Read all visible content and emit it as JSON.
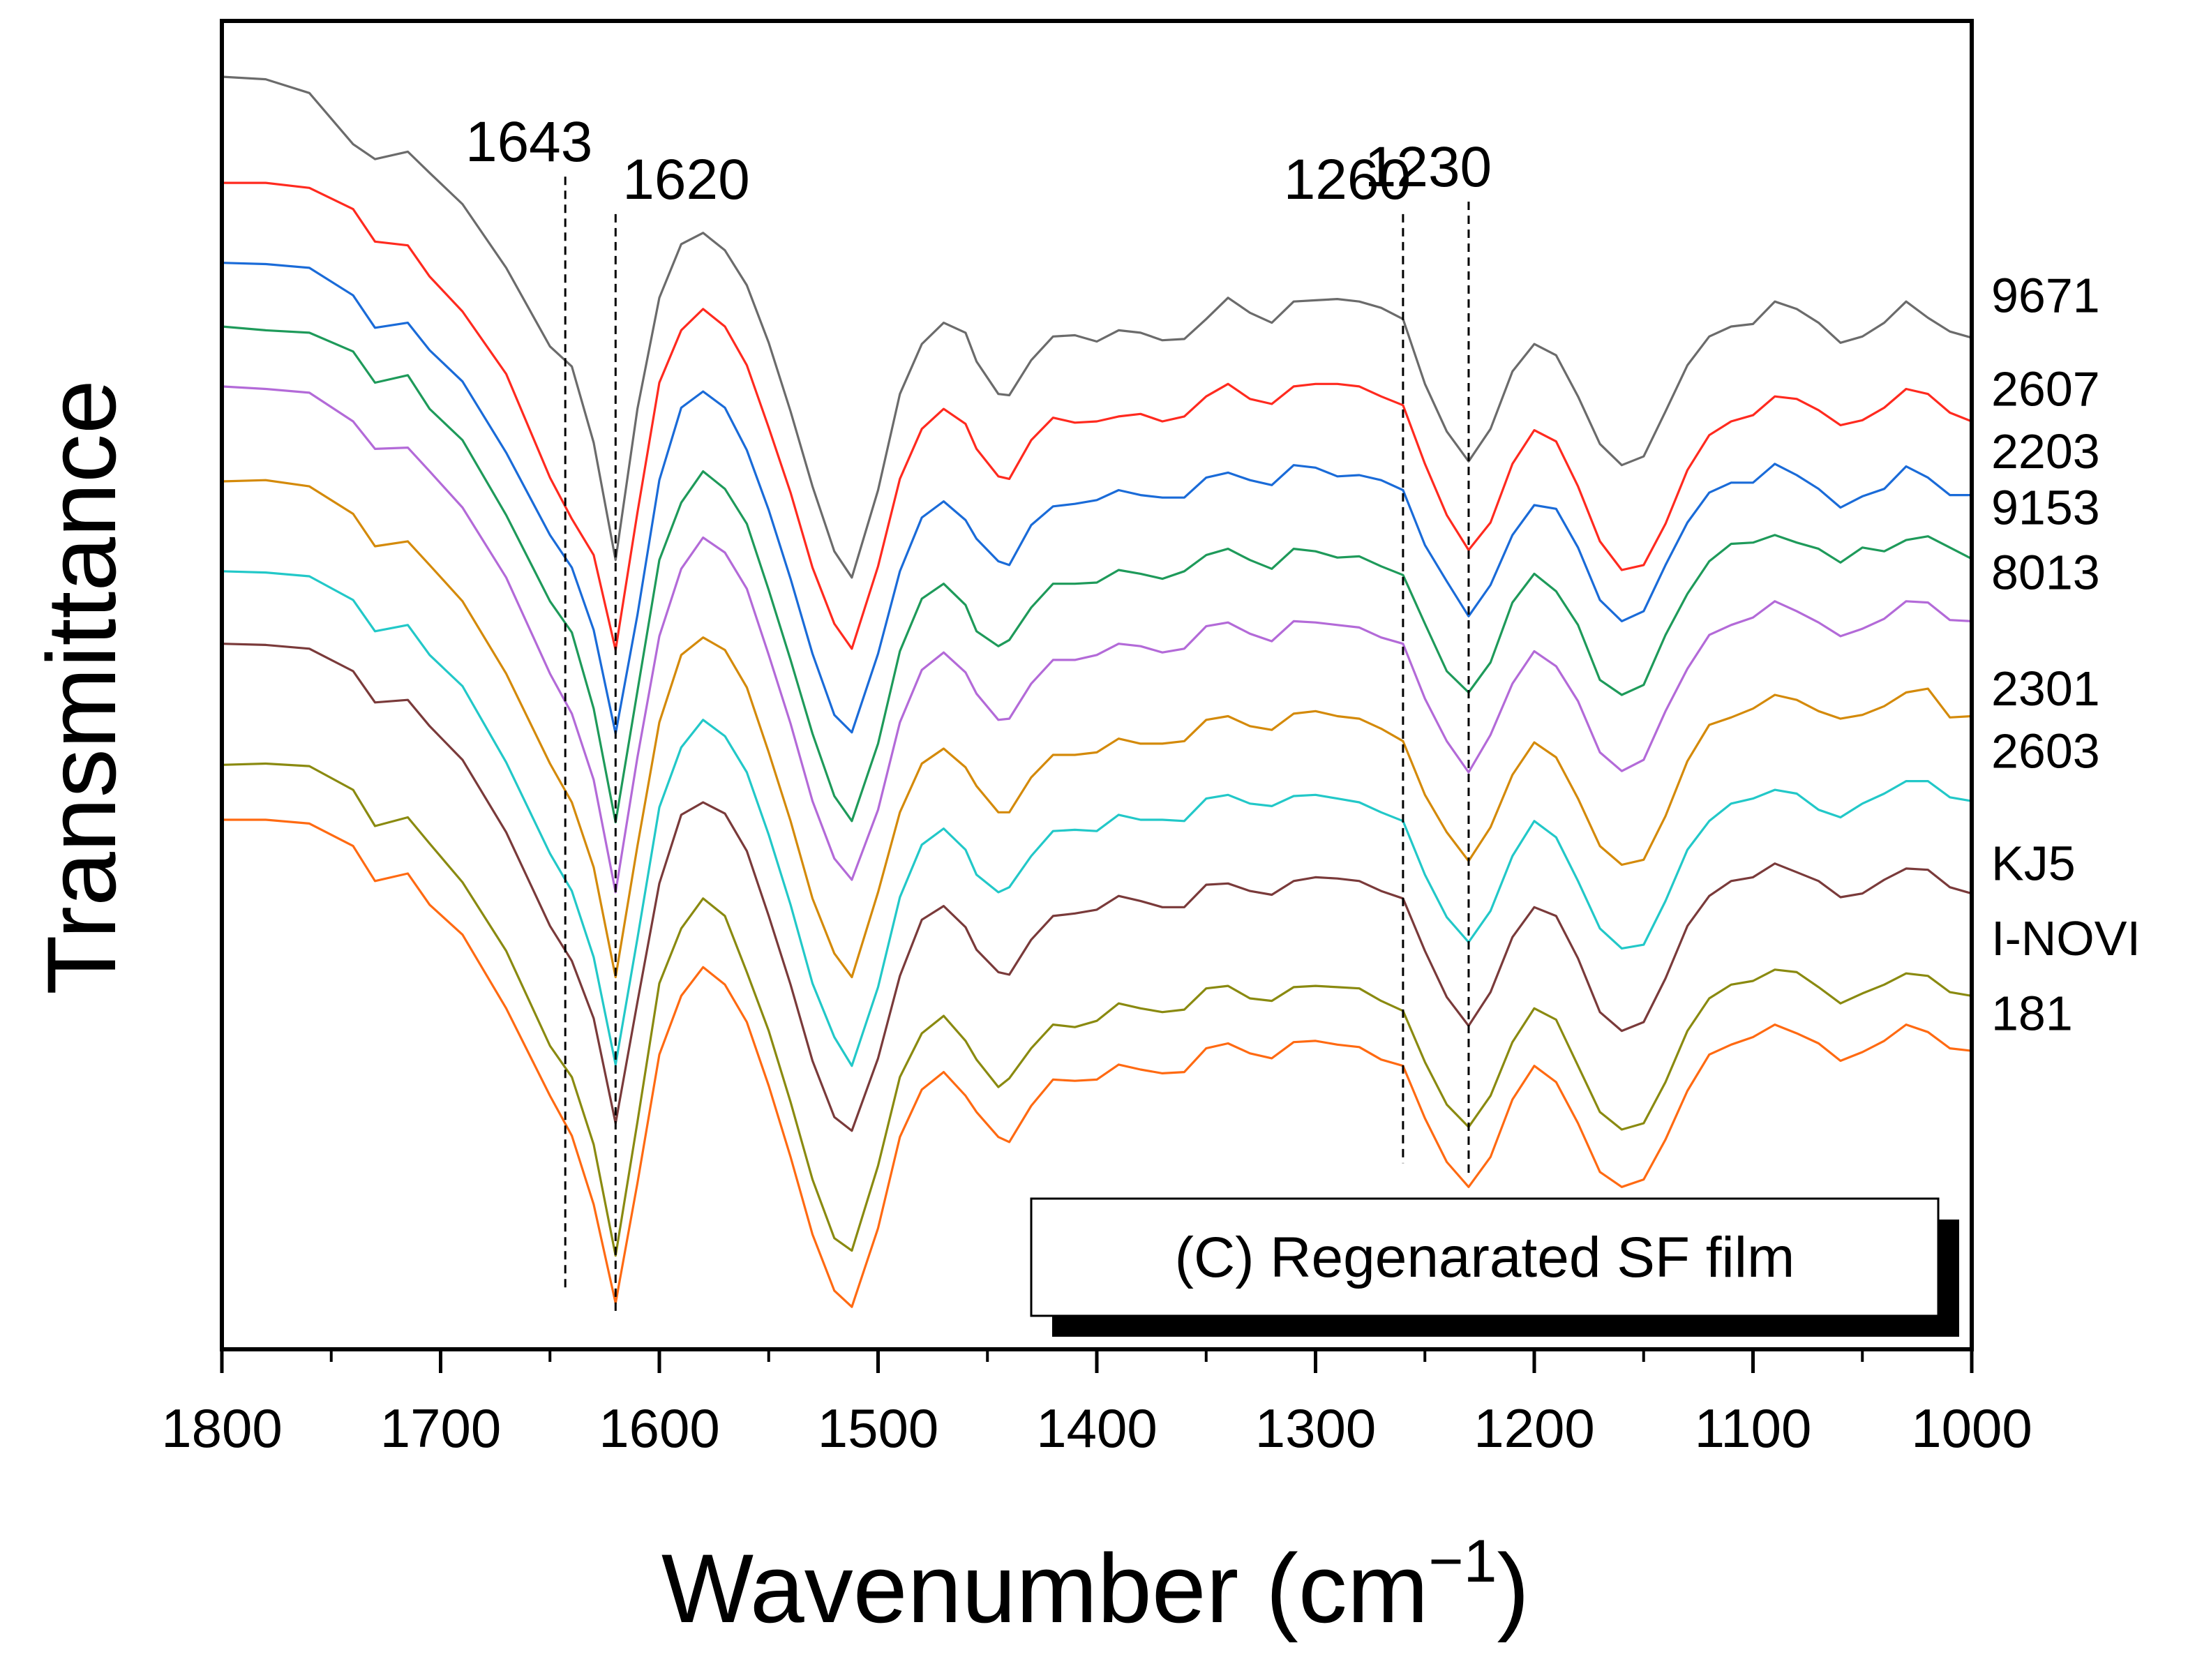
{
  "chart_data": {
    "type": "line",
    "title": "",
    "xlabel": "Wavenumber (cm",
    "xlabel_sup": "−1",
    "xlabel_close": ")",
    "ylabel": "Transmittance",
    "xlim": [
      1800,
      1000
    ],
    "ylim": [
      0,
      100
    ],
    "x_ticks": [
      1800,
      1700,
      1600,
      1500,
      1400,
      1300,
      1200,
      1100,
      1000
    ],
    "x_tick_labels": [
      "1800",
      "1700",
      "1600",
      "1500",
      "1400",
      "1300",
      "1200",
      "1100",
      "1000"
    ],
    "y_ticks_shown": false,
    "grid": false,
    "annotation_box": "(C) Regenarated SF film",
    "reference_lines": [
      {
        "x": 1643,
        "label": "1643",
        "y_top": 92,
        "y_bottom": 3
      },
      {
        "x": 1620,
        "label": "1620",
        "y_top": 89,
        "y_bottom": 1
      },
      {
        "x": 1260,
        "label": "1260",
        "y_top": 89,
        "y_bottom": 13
      },
      {
        "x": 1230,
        "label": "1230",
        "y_top": 90,
        "y_bottom": 12
      }
    ],
    "x": [
      1800,
      1780,
      1760,
      1740,
      1730,
      1715,
      1705,
      1690,
      1670,
      1650,
      1640,
      1630,
      1620,
      1610,
      1600,
      1590,
      1580,
      1570,
      1560,
      1550,
      1540,
      1530,
      1520,
      1512,
      1500,
      1490,
      1480,
      1470,
      1460,
      1455,
      1445,
      1440,
      1430,
      1420,
      1410,
      1400,
      1390,
      1380,
      1370,
      1360,
      1350,
      1340,
      1330,
      1320,
      1310,
      1300,
      1290,
      1280,
      1270,
      1260,
      1250,
      1240,
      1230,
      1220,
      1210,
      1200,
      1190,
      1180,
      1170,
      1160,
      1150,
      1140,
      1130,
      1120,
      1110,
      1100,
      1090,
      1080,
      1070,
      1060,
      1050,
      1040,
      1030,
      1020,
      1010,
      1000
    ],
    "series": [
      {
        "name": "9671",
        "color": "#6b6b6b",
        "values": [
          100.0,
          99.8,
          98.7,
          94.6,
          93.4,
          94.0,
          92.3,
          89.8,
          84.7,
          78.4,
          76.8,
          70.7,
          61.3,
          73.4,
          82.3,
          86.6,
          87.5,
          86.1,
          83.3,
          78.7,
          73.2,
          67.2,
          62.0,
          59.9,
          66.9,
          74.6,
          78.6,
          80.3,
          79.5,
          77.2,
          74.6,
          74.5,
          77.3,
          79.2,
          79.3,
          78.8,
          79.7,
          79.5,
          78.9,
          79.0,
          80.6,
          82.3,
          81.1,
          80.3,
          82.0,
          82.1,
          82.2,
          82.0,
          81.5,
          80.6,
          75.4,
          71.6,
          69.2,
          71.8,
          76.4,
          78.6,
          77.7,
          74.4,
          70.6,
          68.9,
          69.6,
          73.2,
          76.9,
          79.2,
          80.0,
          80.2,
          82.0,
          81.4,
          80.3,
          78.7,
          79.2,
          80.3,
          82.0,
          80.7,
          79.6,
          79.1
        ]
      },
      {
        "name": "2607",
        "color": "#ff2a1f",
        "values": [
          91.5,
          91.5,
          91.1,
          89.4,
          86.8,
          86.5,
          84.0,
          81.2,
          76.2,
          67.9,
          64.6,
          61.7,
          54.1,
          65.1,
          75.5,
          79.7,
          81.4,
          80.0,
          76.9,
          71.9,
          66.7,
          60.7,
          56.2,
          54.2,
          60.8,
          67.8,
          71.8,
          73.4,
          72.2,
          70.2,
          68.0,
          67.8,
          70.9,
          72.7,
          72.3,
          72.4,
          72.8,
          73.0,
          72.4,
          72.8,
          74.4,
          75.4,
          74.2,
          73.8,
          75.2,
          75.4,
          75.4,
          75.2,
          74.4,
          73.7,
          69.0,
          64.9,
          62.1,
          64.3,
          69.0,
          71.7,
          70.8,
          67.2,
          62.8,
          60.5,
          60.9,
          64.2,
          68.5,
          71.3,
          72.4,
          72.9,
          74.4,
          74.2,
          73.3,
          72.1,
          72.5,
          73.5,
          75.0,
          74.6,
          73.1,
          72.4
        ]
      },
      {
        "name": "2203",
        "color": "#1a6bd8",
        "values": [
          85.1,
          85.0,
          84.7,
          82.5,
          79.9,
          80.3,
          78.1,
          75.6,
          69.9,
          63.3,
          60.7,
          55.7,
          47.4,
          56.9,
          67.7,
          73.5,
          74.8,
          73.5,
          70.1,
          65.3,
          59.8,
          53.8,
          48.9,
          47.5,
          53.8,
          60.4,
          64.7,
          66.0,
          64.5,
          63.0,
          61.2,
          60.9,
          64.1,
          65.6,
          65.8,
          66.1,
          66.9,
          66.5,
          66.3,
          66.3,
          67.9,
          68.3,
          67.7,
          67.3,
          68.9,
          68.7,
          68.0,
          68.1,
          67.7,
          66.9,
          62.5,
          59.6,
          56.8,
          59.3,
          63.3,
          65.7,
          65.4,
          62.3,
          58.1,
          56.4,
          57.2,
          60.9,
          64.3,
          66.7,
          67.5,
          67.5,
          69.0,
          68.1,
          67.0,
          65.5,
          66.4,
          67.0,
          68.8,
          67.9,
          66.5,
          66.5
        ]
      },
      {
        "name": "9153",
        "color": "#1e9a5a",
        "values": [
          80.0,
          79.7,
          79.5,
          78.0,
          75.5,
          76.1,
          73.4,
          70.9,
          64.9,
          58.0,
          55.5,
          49.4,
          40.3,
          50.8,
          61.3,
          65.9,
          68.4,
          67.0,
          64.2,
          58.9,
          53.3,
          47.4,
          42.4,
          40.4,
          46.6,
          54.0,
          58.2,
          59.4,
          57.7,
          55.6,
          54.4,
          54.9,
          57.5,
          59.4,
          59.4,
          59.5,
          60.5,
          60.2,
          59.8,
          60.4,
          61.7,
          62.2,
          61.3,
          60.6,
          62.2,
          62.0,
          61.5,
          61.6,
          60.8,
          60.1,
          56.2,
          52.4,
          50.7,
          53.1,
          57.9,
          60.2,
          58.8,
          56.1,
          51.7,
          50.5,
          51.3,
          55.3,
          58.6,
          61.2,
          62.6,
          62.7,
          63.3,
          62.7,
          62.2,
          61.1,
          62.3,
          62.0,
          62.9,
          63.2,
          62.3,
          61.4
        ]
      },
      {
        "name": "8013",
        "color": "#b36ad8",
        "values": [
          75.2,
          75.0,
          74.7,
          72.4,
          70.2,
          70.3,
          68.4,
          65.5,
          59.9,
          52.2,
          49.0,
          43.7,
          34.7,
          45.5,
          55.2,
          60.6,
          63.1,
          61.9,
          59.0,
          53.7,
          48.2,
          42.0,
          37.4,
          35.7,
          41.3,
          48.3,
          52.5,
          53.9,
          52.3,
          50.6,
          48.5,
          48.6,
          51.4,
          53.3,
          53.3,
          53.7,
          54.6,
          54.4,
          53.9,
          54.2,
          56.0,
          56.3,
          55.4,
          54.8,
          56.4,
          56.3,
          56.1,
          55.9,
          55.1,
          54.6,
          50.2,
          46.8,
          44.3,
          47.3,
          51.4,
          54.0,
          52.8,
          50.0,
          45.9,
          44.4,
          45.3,
          49.2,
          52.6,
          55.3,
          56.1,
          56.7,
          58.0,
          57.2,
          56.3,
          55.2,
          55.8,
          56.6,
          58.0,
          57.9,
          56.5,
          56.4
        ]
      },
      {
        "name": "2301",
        "color": "#d48a0a",
        "values": [
          67.6,
          67.7,
          67.2,
          65.0,
          62.4,
          62.8,
          60.9,
          58.0,
          52.2,
          45.0,
          41.9,
          36.7,
          27.9,
          38.4,
          48.3,
          53.7,
          55.1,
          54.1,
          51.1,
          45.9,
          40.4,
          34.2,
          29.8,
          27.9,
          34.7,
          41.1,
          45.0,
          46.2,
          44.7,
          43.2,
          41.1,
          41.1,
          43.9,
          45.7,
          45.7,
          45.9,
          47.0,
          46.6,
          46.6,
          46.8,
          48.5,
          48.8,
          48.0,
          47.7,
          49.0,
          49.2,
          48.8,
          48.6,
          47.8,
          46.8,
          42.5,
          39.5,
          37.2,
          39.9,
          44.1,
          46.7,
          45.5,
          42.2,
          38.4,
          36.9,
          37.3,
          40.8,
          45.2,
          48.1,
          48.7,
          49.4,
          50.5,
          50.1,
          49.2,
          48.6,
          48.9,
          49.6,
          50.7,
          51.0,
          48.7,
          48.8
        ]
      },
      {
        "name": "2603",
        "color": "#22c8c8",
        "values": [
          60.4,
          60.3,
          60.0,
          58.1,
          55.6,
          56.1,
          53.7,
          51.2,
          45.1,
          37.8,
          34.8,
          29.5,
          20.9,
          31.0,
          41.5,
          46.3,
          48.5,
          47.2,
          44.3,
          39.3,
          33.7,
          27.4,
          23.1,
          20.8,
          27.1,
          34.3,
          38.5,
          39.8,
          38.1,
          36.1,
          34.7,
          35.1,
          37.6,
          39.6,
          39.7,
          39.6,
          40.9,
          40.5,
          40.5,
          40.4,
          42.2,
          42.5,
          41.8,
          41.6,
          42.4,
          42.5,
          42.2,
          41.9,
          41.1,
          40.4,
          36.1,
          32.7,
          30.7,
          33.2,
          37.6,
          40.4,
          39.1,
          35.6,
          31.8,
          30.2,
          30.5,
          34.0,
          38.1,
          40.4,
          41.8,
          42.2,
          42.9,
          42.6,
          41.3,
          40.7,
          41.8,
          42.6,
          43.6,
          43.6,
          42.3,
          42.0
        ]
      },
      {
        "name": "KJ5",
        "color": "#7a3a3a",
        "values": [
          54.6,
          54.5,
          54.2,
          52.4,
          49.9,
          50.1,
          48.0,
          45.3,
          39.5,
          32.0,
          29.2,
          24.6,
          16.2,
          25.9,
          35.4,
          40.9,
          41.9,
          41.0,
          38.0,
          32.8,
          27.3,
          21.2,
          16.7,
          15.6,
          21.4,
          28.0,
          32.5,
          33.6,
          31.9,
          30.1,
          28.3,
          28.1,
          30.9,
          32.8,
          33.0,
          33.3,
          34.4,
          34.0,
          33.5,
          33.5,
          35.3,
          35.4,
          34.8,
          34.5,
          35.6,
          35.9,
          35.8,
          35.6,
          34.8,
          34.2,
          30.0,
          26.3,
          24.0,
          26.7,
          31.1,
          33.5,
          32.8,
          29.4,
          25.1,
          23.6,
          24.3,
          27.8,
          32.0,
          34.4,
          35.6,
          35.9,
          37.0,
          36.3,
          35.6,
          34.3,
          34.6,
          35.7,
          36.6,
          36.5,
          35.1,
          34.6
        ]
      },
      {
        "name": "I-NOVI",
        "color": "#8a8a10",
        "values": [
          44.9,
          45.0,
          44.8,
          42.9,
          40.0,
          40.7,
          38.6,
          35.5,
          30.0,
          22.4,
          19.9,
          14.5,
          5.6,
          16.3,
          27.4,
          31.8,
          34.2,
          32.8,
          28.3,
          23.6,
          17.9,
          11.7,
          7.0,
          6.0,
          12.8,
          19.9,
          23.4,
          24.8,
          22.8,
          21.3,
          19.1,
          19.8,
          22.2,
          24.1,
          23.9,
          24.4,
          25.8,
          25.4,
          25.1,
          25.3,
          27.0,
          27.2,
          26.2,
          26.0,
          27.1,
          27.2,
          27.1,
          27.0,
          26.0,
          25.2,
          21.1,
          17.7,
          15.9,
          18.4,
          22.7,
          25.4,
          24.5,
          20.8,
          17.1,
          15.7,
          16.2,
          19.5,
          23.6,
          26.2,
          27.3,
          27.6,
          28.5,
          28.3,
          27.1,
          25.8,
          26.6,
          27.3,
          28.2,
          28.0,
          26.7,
          26.4
        ]
      },
      {
        "name": "181",
        "color": "#ff6a12",
        "values": [
          40.5,
          40.5,
          40.2,
          38.4,
          35.6,
          36.2,
          33.7,
          31.3,
          25.4,
          18.4,
          15.2,
          9.7,
          1.8,
          11.4,
          21.7,
          26.4,
          28.7,
          27.3,
          24.3,
          19.2,
          13.5,
          7.3,
          2.8,
          1.5,
          7.8,
          15.1,
          18.9,
          20.3,
          18.4,
          17.1,
          15.1,
          14.7,
          17.6,
          19.7,
          19.6,
          19.7,
          20.9,
          20.5,
          20.2,
          20.3,
          22.2,
          22.6,
          21.8,
          21.4,
          22.7,
          22.8,
          22.5,
          22.3,
          21.3,
          20.8,
          16.6,
          13.1,
          11.1,
          13.5,
          18.1,
          20.8,
          19.5,
          16.2,
          12.3,
          11.1,
          11.7,
          14.9,
          18.8,
          21.7,
          22.5,
          23.1,
          24.1,
          23.4,
          22.6,
          21.2,
          21.9,
          22.8,
          24.1,
          23.5,
          22.2,
          22.0
        ]
      }
    ],
    "series_label_values": {
      "9671": 82.5,
      "2607": 75.0,
      "2203": 70.0,
      "9153": 65.5,
      "8013": 60.3,
      "2301": 51.0,
      "2603": 46.0,
      "KJ5": 37.0,
      "I-NOVI": 31.0,
      "181": 25.0
    }
  }
}
